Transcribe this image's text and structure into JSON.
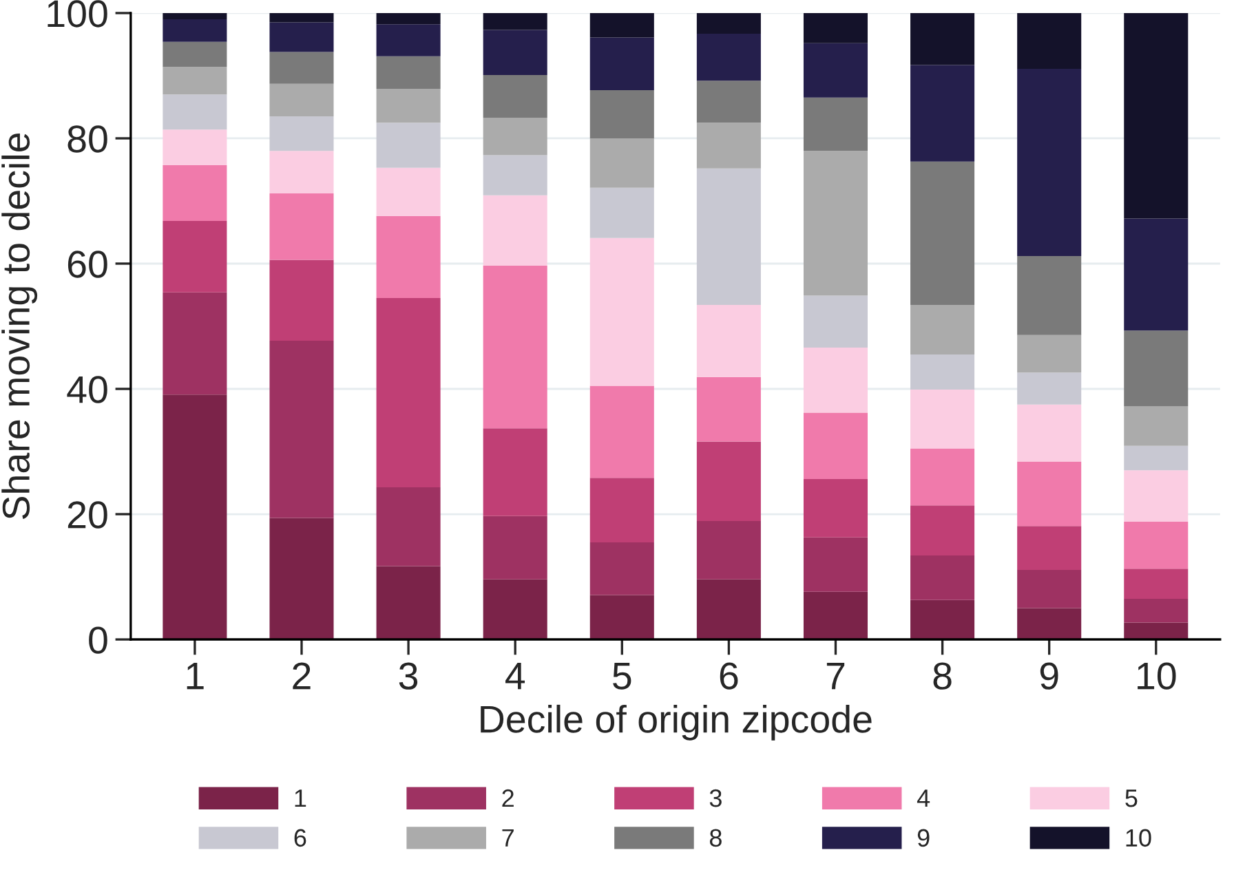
{
  "chart_data": {
    "type": "bar",
    "stacked": true,
    "xlabel": "Decile of origin zipcode",
    "ylabel": "Share moving to decile",
    "categories": [
      "1",
      "2",
      "3",
      "4",
      "5",
      "6",
      "7",
      "8",
      "9",
      "10"
    ],
    "series": [
      {
        "name": "1",
        "color": "#7b2349",
        "values": [
          39.1,
          19.4,
          11.7,
          9.6,
          7.1,
          9.6,
          7.6,
          6.3,
          5.0,
          2.7
        ]
      },
      {
        "name": "2",
        "color": "#9e3262",
        "values": [
          16.3,
          28.3,
          12.6,
          10.1,
          8.4,
          9.3,
          8.7,
          7.1,
          6.1,
          3.8
        ]
      },
      {
        "name": "3",
        "color": "#c03f75",
        "values": [
          11.4,
          12.9,
          30.2,
          14.0,
          10.3,
          12.7,
          9.3,
          8.0,
          7.0,
          4.8
        ]
      },
      {
        "name": "4",
        "color": "#f07aab",
        "values": [
          8.9,
          10.6,
          13.1,
          26.0,
          14.7,
          10.3,
          10.6,
          9.1,
          10.3,
          7.5
        ]
      },
      {
        "name": "5",
        "color": "#fbcde2",
        "values": [
          5.7,
          6.8,
          7.7,
          11.2,
          23.6,
          11.5,
          10.4,
          9.4,
          9.1,
          8.2
        ]
      },
      {
        "name": "6",
        "color": "#c8c8d2",
        "values": [
          5.6,
          5.5,
          7.2,
          6.4,
          8.0,
          21.8,
          8.3,
          5.6,
          5.1,
          3.9
        ]
      },
      {
        "name": "7",
        "color": "#ababab",
        "values": [
          4.4,
          5.2,
          5.4,
          6.0,
          7.9,
          7.3,
          23.1,
          7.9,
          6.0,
          6.3
        ]
      },
      {
        "name": "8",
        "color": "#7a7a7a",
        "values": [
          4.0,
          5.1,
          5.2,
          6.8,
          7.7,
          6.7,
          8.5,
          22.9,
          12.6,
          12.1
        ]
      },
      {
        "name": "9",
        "color": "#251f4c",
        "values": [
          3.6,
          4.7,
          5.1,
          7.2,
          8.4,
          7.5,
          8.7,
          15.4,
          29.9,
          17.9
        ]
      },
      {
        "name": "10",
        "color": "#14122a",
        "values": [
          1.0,
          1.5,
          1.8,
          2.7,
          3.9,
          3.3,
          4.8,
          8.3,
          8.9,
          32.8
        ]
      }
    ],
    "ylim": [
      0,
      100
    ],
    "yticks": [
      0,
      20,
      40,
      60,
      80,
      100
    ],
    "grid": "y",
    "legend": "bottom"
  }
}
